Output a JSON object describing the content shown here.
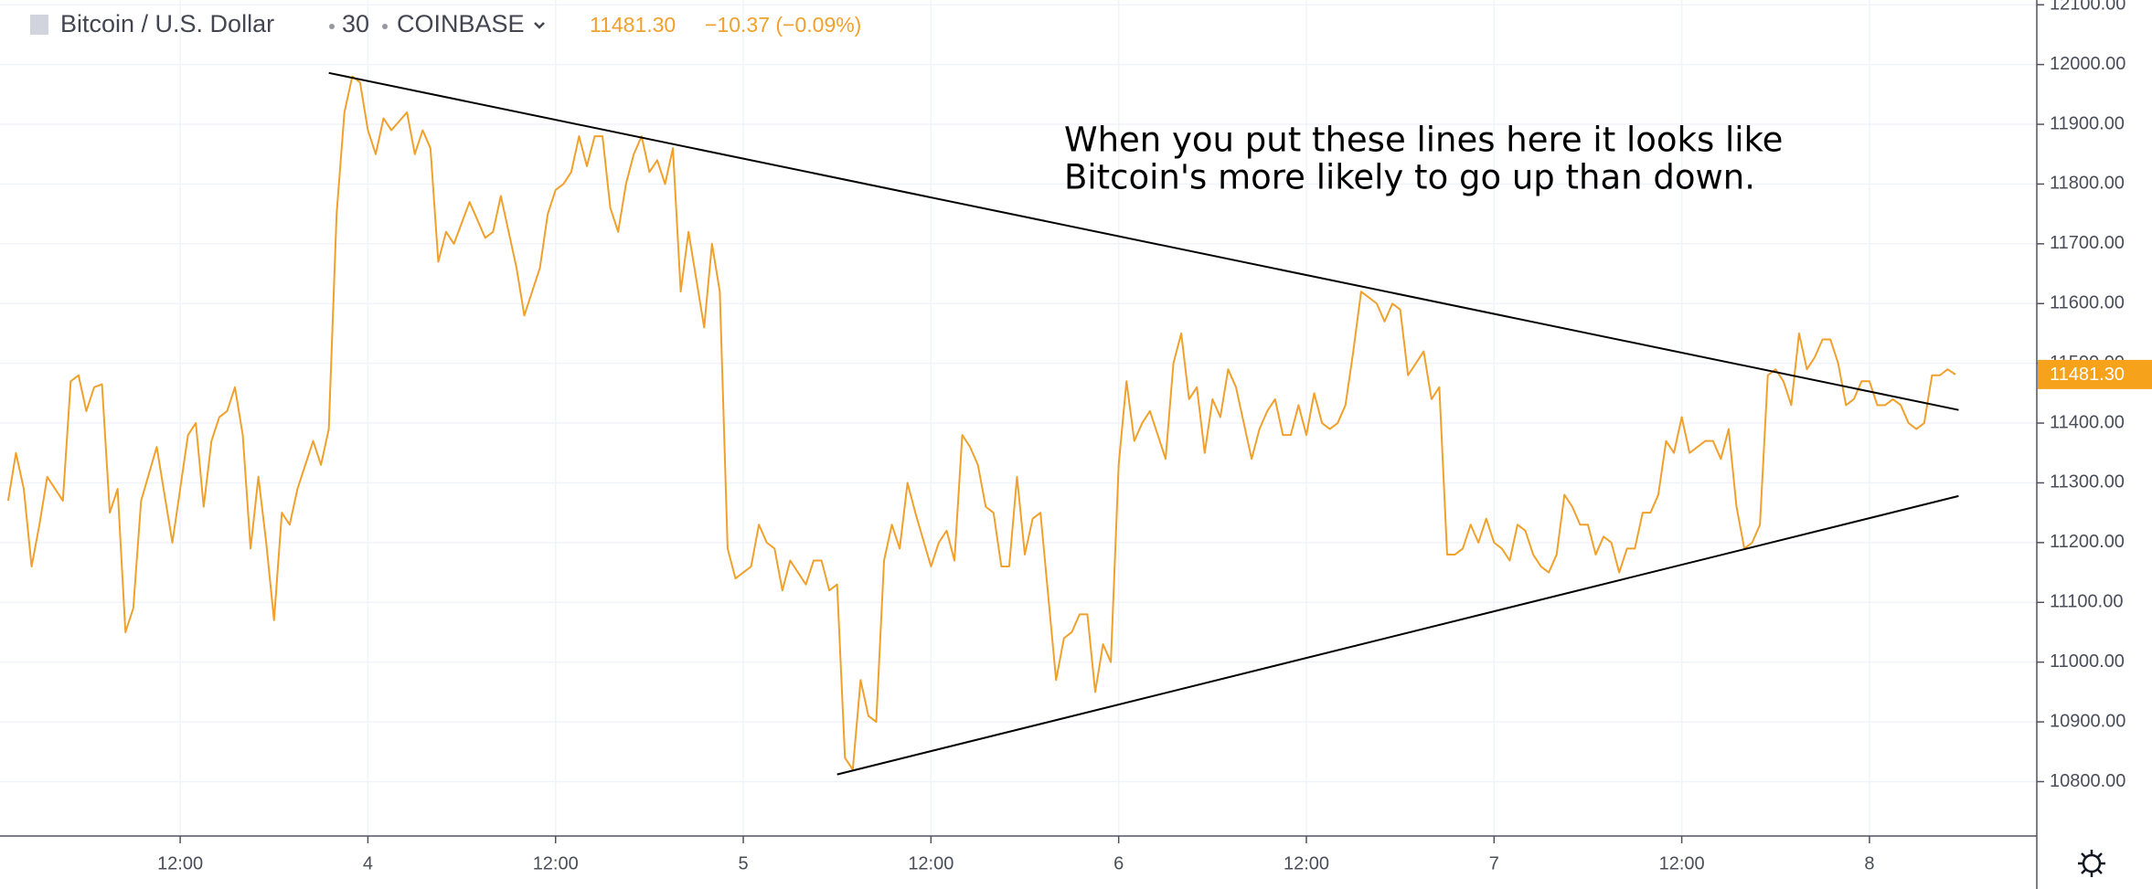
{
  "chart_data": {
    "type": "line",
    "symbol": "Bitcoin / U.S. Dollar",
    "interval": "30",
    "exchange": "COINBASE",
    "change": "−10.37 (−0.09%)",
    "last_price": {
      "value": 11481.3,
      "label": "11481.30"
    },
    "annotation": [
      "When you put these lines here it looks like",
      "Bitcoin's more likely to go up than down."
    ],
    "color": "#f0a12c",
    "grid": true,
    "xlim": [
      0.48,
      130.7
    ],
    "xticks": [
      {
        "value": 12,
        "label": "12:00"
      },
      {
        "value": 24,
        "label": "4"
      },
      {
        "value": 36,
        "label": "12:00"
      },
      {
        "value": 48,
        "label": "5"
      },
      {
        "value": 60,
        "label": "12:00"
      },
      {
        "value": 72,
        "label": "6"
      },
      {
        "value": 84,
        "label": "12:00"
      },
      {
        "value": 96,
        "label": "7"
      },
      {
        "value": 108,
        "label": "12:00"
      },
      {
        "value": 120,
        "label": "8"
      }
    ],
    "ylim": [
      10709,
      12108
    ],
    "yticks": [
      {
        "value": 10800,
        "label": "10800.00"
      },
      {
        "value": 10900,
        "label": "10900.00"
      },
      {
        "value": 11000,
        "label": "11000.00"
      },
      {
        "value": 11100,
        "label": "11100.00"
      },
      {
        "value": 11200,
        "label": "11200.00"
      },
      {
        "value": 11300,
        "label": "11300.00"
      },
      {
        "value": 11400,
        "label": "11400.00"
      },
      {
        "value": 11500,
        "label": "11500.00"
      },
      {
        "value": 11600,
        "label": "11600.00"
      },
      {
        "value": 11700,
        "label": "11700.00"
      },
      {
        "value": 11800,
        "label": "11800.00"
      },
      {
        "value": 11900,
        "label": "11900.00"
      },
      {
        "value": 12000,
        "label": "12000.00"
      },
      {
        "value": 12100,
        "label": "12100.00"
      }
    ],
    "x": [
      1,
      1.5,
      2,
      2.5,
      3,
      3.5,
      4.5,
      5,
      5.5,
      6,
      6.5,
      7,
      7.5,
      8,
      8.5,
      9,
      9.5,
      10.5,
      11.5,
      12,
      12.5,
      13,
      13.5,
      14,
      14.5,
      15,
      15.5,
      16,
      16.5,
      17,
      17.5,
      18,
      18.5,
      19,
      19.5,
      20,
      20.5,
      21,
      21.5,
      22,
      22.5,
      23,
      23.5,
      24,
      24.5,
      25,
      25.5,
      26.5,
      27,
      27.5,
      28,
      28.5,
      29,
      29.5,
      30.5,
      31.5,
      32,
      32.5,
      33.5,
      34,
      35,
      35.5,
      36,
      36.5,
      37,
      37.5,
      38,
      38.5,
      39,
      39.5,
      40,
      40.5,
      41,
      41.5,
      42,
      42.5,
      43,
      43.5,
      44,
      44.5,
      45.5,
      46,
      46.5,
      47,
      47.5,
      48,
      48.5,
      49,
      49.5,
      50,
      50.5,
      51,
      52,
      52.5,
      53,
      53.5,
      54,
      54.5,
      55,
      55.5,
      56,
      56.5,
      57,
      57.5,
      58,
      58.5,
      59,
      60,
      60.5,
      61,
      61.5,
      62,
      62.5,
      63,
      63.5,
      64,
      64.5,
      65,
      65.5,
      66,
      66.5,
      67,
      68,
      68.5,
      69,
      69.5,
      70,
      70.5,
      71,
      71.5,
      72,
      72.5,
      73,
      73.5,
      74,
      75,
      75.5,
      76,
      76.5,
      77,
      77.5,
      78,
      78.5,
      79,
      79.5,
      80.5,
      81,
      81.5,
      82,
      82.5,
      83,
      83.5,
      84,
      84.5,
      85,
      85.5,
      86,
      86.5,
      87,
      87.5,
      88,
      88.5,
      89,
      89.5,
      90,
      90.5,
      91,
      91.5,
      92,
      92.5,
      93,
      93.5,
      94,
      94.5,
      95,
      95.5,
      96,
      96.5,
      97,
      97.5,
      98,
      98.5,
      99,
      99.5,
      100,
      100.5,
      101,
      101.5,
      102,
      102.5,
      103,
      103.5,
      104,
      104.5,
      105,
      105.5,
      106,
      106.5,
      107,
      107.5,
      108,
      108.5,
      109.5,
      110,
      110.5,
      111,
      111.5,
      112,
      112.5,
      113,
      113.5,
      114,
      114.5,
      115,
      115.5,
      116,
      116.5,
      117,
      117.5,
      118,
      118.5,
      119,
      119.5,
      120,
      120.5,
      121,
      121.5,
      122,
      122.5,
      123,
      123.5,
      124,
      124.5,
      125,
      125.5
    ],
    "values": [
      11270,
      11350,
      11290,
      11160,
      11230,
      11310,
      11270,
      11470,
      11480,
      11420,
      11460,
      11465,
      11250,
      11290,
      11050,
      11090,
      11270,
      11360,
      11200,
      11290,
      11380,
      11400,
      11260,
      11370,
      11410,
      11420,
      11460,
      11380,
      11190,
      11310,
      11200,
      11070,
      11250,
      11230,
      11290,
      11330,
      11370,
      11330,
      11390,
      11750,
      11920,
      11980,
      11970,
      11890,
      11850,
      11910,
      11890,
      11920,
      11850,
      11890,
      11860,
      11670,
      11720,
      11700,
      11770,
      11710,
      11720,
      11780,
      11660,
      11580,
      11660,
      11750,
      11790,
      11800,
      11820,
      11880,
      11830,
      11880,
      11880,
      11760,
      11720,
      11800,
      11850,
      11880,
      11820,
      11840,
      11800,
      11860,
      11620,
      11720,
      11560,
      11700,
      11620,
      11190,
      11140,
      11150,
      11160,
      11230,
      11200,
      11190,
      11120,
      11170,
      11130,
      11170,
      11170,
      11120,
      11130,
      10840,
      10820,
      10970,
      10910,
      10900,
      11170,
      11230,
      11190,
      11300,
      11250,
      11160,
      11200,
      11220,
      11170,
      11380,
      11360,
      11330,
      11260,
      11250,
      11160,
      11160,
      11310,
      11180,
      11240,
      11250,
      10970,
      11040,
      11050,
      11080,
      11080,
      10950,
      11030,
      11000,
      11330,
      11470,
      11370,
      11400,
      11420,
      11340,
      11500,
      11550,
      11440,
      11460,
      11350,
      11440,
      11410,
      11490,
      11460,
      11340,
      11390,
      11420,
      11440,
      11380,
      11380,
      11430,
      11380,
      11450,
      11400,
      11390,
      11400,
      11430,
      11520,
      11620,
      11610,
      11600,
      11570,
      11600,
      11590,
      11480,
      11500,
      11520,
      11440,
      11460,
      11180,
      11180,
      11190,
      11230,
      11200,
      11240,
      11200,
      11190,
      11170,
      11230,
      11220,
      11180,
      11160,
      11150,
      11180,
      11280,
      11260,
      11230,
      11230,
      11180,
      11210,
      11200,
      11150,
      11190,
      11190,
      11250,
      11250,
      11280,
      11370,
      11350,
      11410,
      11350,
      11370,
      11370,
      11340,
      11390,
      11260,
      11190,
      11200,
      11230,
      11480,
      11490,
      11470,
      11430,
      11550,
      11490,
      11510,
      11540,
      11540,
      11500,
      11430,
      11440,
      11470,
      11470,
      11430,
      11430,
      11440,
      11430,
      11400,
      11390,
      11400,
      11480,
      11480,
      11490,
      11481.3
    ],
    "trend_lines": [
      {
        "color": "#000000",
        "x": [
          21.5,
          125.7
        ],
        "values": [
          11986,
          11422
        ]
      },
      {
        "color": "#000000",
        "x": [
          54.0,
          125.7
        ],
        "values": [
          10812,
          11278
        ]
      }
    ]
  }
}
